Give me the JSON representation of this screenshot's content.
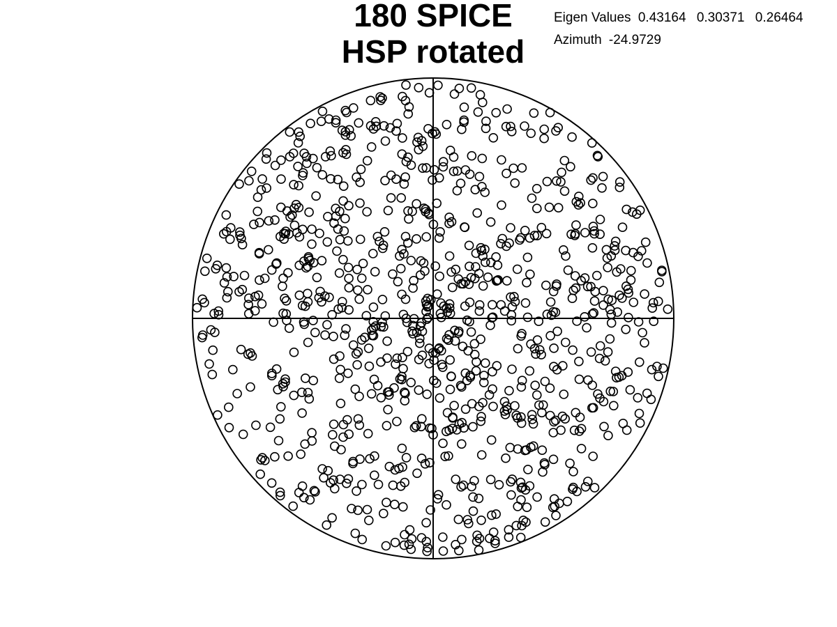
{
  "chart_data": {
    "type": "scatter",
    "projection": "equal-area stereonet (lower hemisphere)",
    "title_lines": [
      "180 SPICE",
      "HSP rotated"
    ],
    "annotations": {
      "eigen_label": "Eigen Values",
      "eigen_values": [
        "0.43164",
        "0.30371",
        "0.26464"
      ],
      "azimuth_label": "Azimuth",
      "azimuth_value": "-24.9729"
    },
    "xlim": [
      -1,
      1
    ],
    "ylim": [
      -1,
      1
    ],
    "cross_lines": true,
    "marker": "open-circle",
    "marker_color": "#000000",
    "point_count_estimate": 1000,
    "distribution": "near-uniform spread across the net with mild concentration toward the centre",
    "points_sample": [
      [
        -0.06,
        0.96
      ],
      [
        0.02,
        0.97
      ],
      [
        -0.1,
        0.88
      ],
      [
        0.22,
        0.82
      ],
      [
        0.51,
        0.78
      ],
      [
        -0.71,
        0.58
      ],
      [
        -0.86,
        0.43
      ],
      [
        -0.94,
        0.25
      ],
      [
        -0.91,
        0.02
      ],
      [
        -0.96,
        -0.08
      ],
      [
        -0.85,
        -0.37
      ],
      [
        -0.71,
        -0.58
      ],
      [
        -0.42,
        -0.83
      ],
      [
        -0.1,
        -0.94
      ],
      [
        0.04,
        -0.91
      ],
      [
        0.2,
        -0.84
      ],
      [
        0.51,
        -0.82
      ],
      [
        0.71,
        -0.45
      ],
      [
        0.85,
        -0.33
      ],
      [
        0.93,
        -0.2
      ],
      [
        0.94,
        0.15
      ],
      [
        0.95,
        0.2
      ],
      [
        0.86,
        0.45
      ],
      [
        0.66,
        0.73
      ],
      [
        0.03,
        0.02
      ],
      [
        -0.13,
        0.1
      ],
      [
        0.09,
        -0.05
      ],
      [
        0.27,
        0.16
      ],
      [
        -0.23,
        -0.28
      ],
      [
        0.55,
        -0.1
      ],
      [
        -0.4,
        0.28
      ],
      [
        0.3,
        -0.4
      ],
      [
        -0.05,
        -0.45
      ],
      [
        0.13,
        0.38
      ],
      [
        -0.52,
        -0.1
      ],
      [
        0.74,
        0.26
      ],
      [
        -0.65,
        0.23
      ],
      [
        0.41,
        0.5
      ],
      [
        -0.3,
        0.62
      ],
      [
        0.16,
        -0.7
      ]
    ]
  }
}
